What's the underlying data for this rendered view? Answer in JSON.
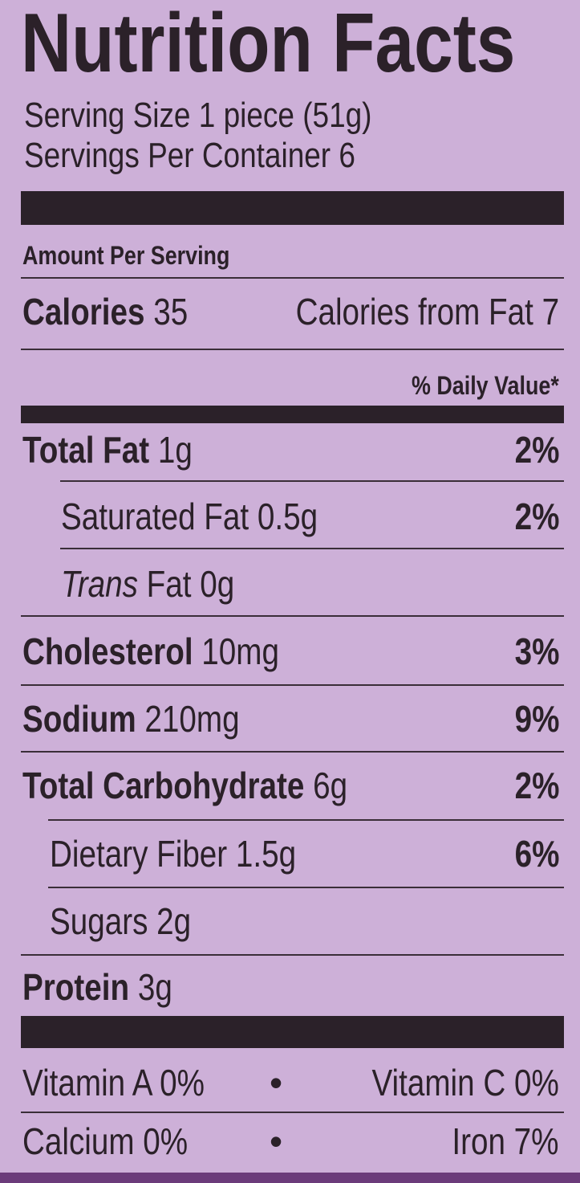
{
  "title": "Nutrition Facts",
  "serving_size": "Serving Size 1 piece (51g)",
  "servings_per_container": "Servings Per Container 6",
  "amount_per_serving": "Amount Per Serving",
  "calories": {
    "label": "Calories",
    "value": "35",
    "from_fat": "Calories from Fat 7"
  },
  "daily_value_header": "% Daily Value*",
  "nutrients": [
    {
      "label": "Total Fat",
      "amount": "1g",
      "dv": "2%"
    },
    {
      "label": "Saturated Fat",
      "amount": "0.5g",
      "dv": "2%"
    },
    {
      "label": "Trans",
      "label_rest": "Fat 0g"
    },
    {
      "label": "Cholesterol",
      "amount": "10mg",
      "dv": "3%"
    },
    {
      "label": "Sodium",
      "amount": "210mg",
      "dv": "9%"
    },
    {
      "label": "Total Carbohydrate",
      "amount": "6g",
      "dv": "2%"
    },
    {
      "label": "Dietary Fiber",
      "amount": "1.5g",
      "dv": "6%"
    },
    {
      "label": "Sugars",
      "amount": "2g"
    },
    {
      "label": "Protein",
      "amount": "3g"
    }
  ],
  "vitamins": {
    "vitamin_a": "Vitamin A 0%",
    "vitamin_c": "Vitamin C 0%",
    "calcium": "Calcium 0%",
    "iron": "Iron 7%",
    "separator": "•"
  },
  "colors": {
    "background": "#cdb0d8",
    "ink": "#2b2129",
    "edge": "#6b3b7a"
  }
}
